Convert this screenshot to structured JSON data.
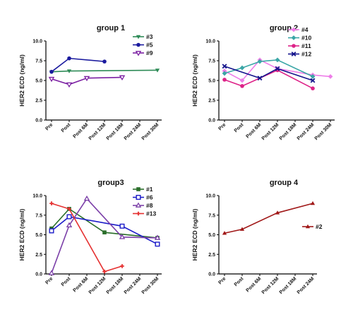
{
  "chart_data": [
    {
      "type": "line",
      "title": "group 1",
      "ylabel": "HER2  ECD  (ng/ml)",
      "categories": [
        "Pre",
        "Post",
        "Post 6M",
        "Post 12M",
        "Post 18M",
        "Post 24M",
        "Post 30M"
      ],
      "y_ticks": [
        "0.0",
        "2.5",
        "5.0",
        "7.5",
        "10.0"
      ],
      "ylim": [
        0,
        10
      ],
      "legend_position": "top-right",
      "series": [
        {
          "name": "#3",
          "color": "#2e8b57",
          "marker": "triangle-down",
          "values": [
            6.1,
            6.2,
            null,
            null,
            null,
            null,
            6.3
          ]
        },
        {
          "name": "#5",
          "color": "#1a1a9e",
          "marker": "circle",
          "values": [
            6.1,
            7.8,
            null,
            7.4,
            null,
            null,
            null
          ]
        },
        {
          "name": "#9",
          "color": "#7b1fa2",
          "marker": "triangle-down-open",
          "values": [
            5.2,
            4.5,
            5.3,
            null,
            5.4,
            null,
            null
          ]
        }
      ]
    },
    {
      "type": "line",
      "title": "group 2",
      "ylabel": "HER2  ECD  (ng/ml)",
      "categories": [
        "Pre",
        "Post",
        "Post 6M",
        "Post 12M",
        "Post 18M",
        "Post 24M",
        "Post 30M"
      ],
      "y_ticks": [
        "0.0",
        "2.5",
        "5.0",
        "7.5",
        "10.0"
      ],
      "ylim": [
        0,
        10
      ],
      "legend_position": "top-right",
      "series": [
        {
          "name": "#4",
          "color": "#ee7ee8",
          "marker": "diamond",
          "values": [
            6.2,
            5.0,
            7.6,
            6.5,
            null,
            5.7,
            5.5
          ]
        },
        {
          "name": "#10",
          "color": "#3aa6a6",
          "marker": "diamond",
          "values": [
            5.9,
            6.6,
            7.4,
            7.6,
            null,
            5.5,
            null
          ]
        },
        {
          "name": "#11",
          "color": "#dd2288",
          "marker": "circle",
          "values": [
            5.1,
            4.3,
            null,
            6.3,
            null,
            4.0,
            null
          ]
        },
        {
          "name": "#12",
          "color": "#14148c",
          "marker": "x",
          "values": [
            6.8,
            null,
            5.3,
            6.5,
            null,
            5.0,
            null
          ]
        }
      ]
    },
    {
      "type": "line",
      "title": "group3",
      "ylabel": "HER2  ECD  (ng/ml)",
      "categories": [
        "Pre",
        "Post",
        "Post 6M",
        "Post 12M",
        "Post 18M",
        "Post 24M",
        "Post 30M"
      ],
      "y_ticks": [
        "0.0",
        "2.5",
        "5.0",
        "7.5",
        "10.0"
      ],
      "ylim": [
        0,
        10
      ],
      "legend_position": "top-right",
      "series": [
        {
          "name": "#1",
          "color": "#2a6e2a",
          "marker": "square",
          "values": [
            5.8,
            8.3,
            null,
            5.3,
            null,
            null,
            4.6
          ]
        },
        {
          "name": "#6",
          "color": "#1c1cc8",
          "marker": "square-open",
          "values": [
            5.5,
            7.3,
            null,
            null,
            6.1,
            null,
            3.8
          ]
        },
        {
          "name": "#8",
          "color": "#7b3fa8",
          "marker": "triangle-open",
          "values": [
            0.1,
            6.2,
            9.6,
            null,
            4.7,
            null,
            4.6
          ]
        },
        {
          "name": "#13",
          "color": "#e53030",
          "marker": "plus",
          "values": [
            9.0,
            8.3,
            null,
            0.3,
            1.0,
            null,
            null
          ]
        }
      ]
    },
    {
      "type": "line",
      "title": "group 4",
      "ylabel": "HER2  ECD  (ng/ml)",
      "categories": [
        "Pre",
        "Post",
        "Post 6M",
        "Post 12M",
        "Post 18M",
        "Post 24M"
      ],
      "y_ticks": [
        "0.0",
        "2.5",
        "5.0",
        "7.5",
        "10.0"
      ],
      "ylim": [
        0,
        10
      ],
      "legend_position": "right",
      "series": [
        {
          "name": "#2",
          "color": "#a01818",
          "marker": "triangle",
          "values": [
            5.2,
            5.7,
            null,
            7.8,
            null,
            9.0
          ]
        }
      ]
    }
  ]
}
